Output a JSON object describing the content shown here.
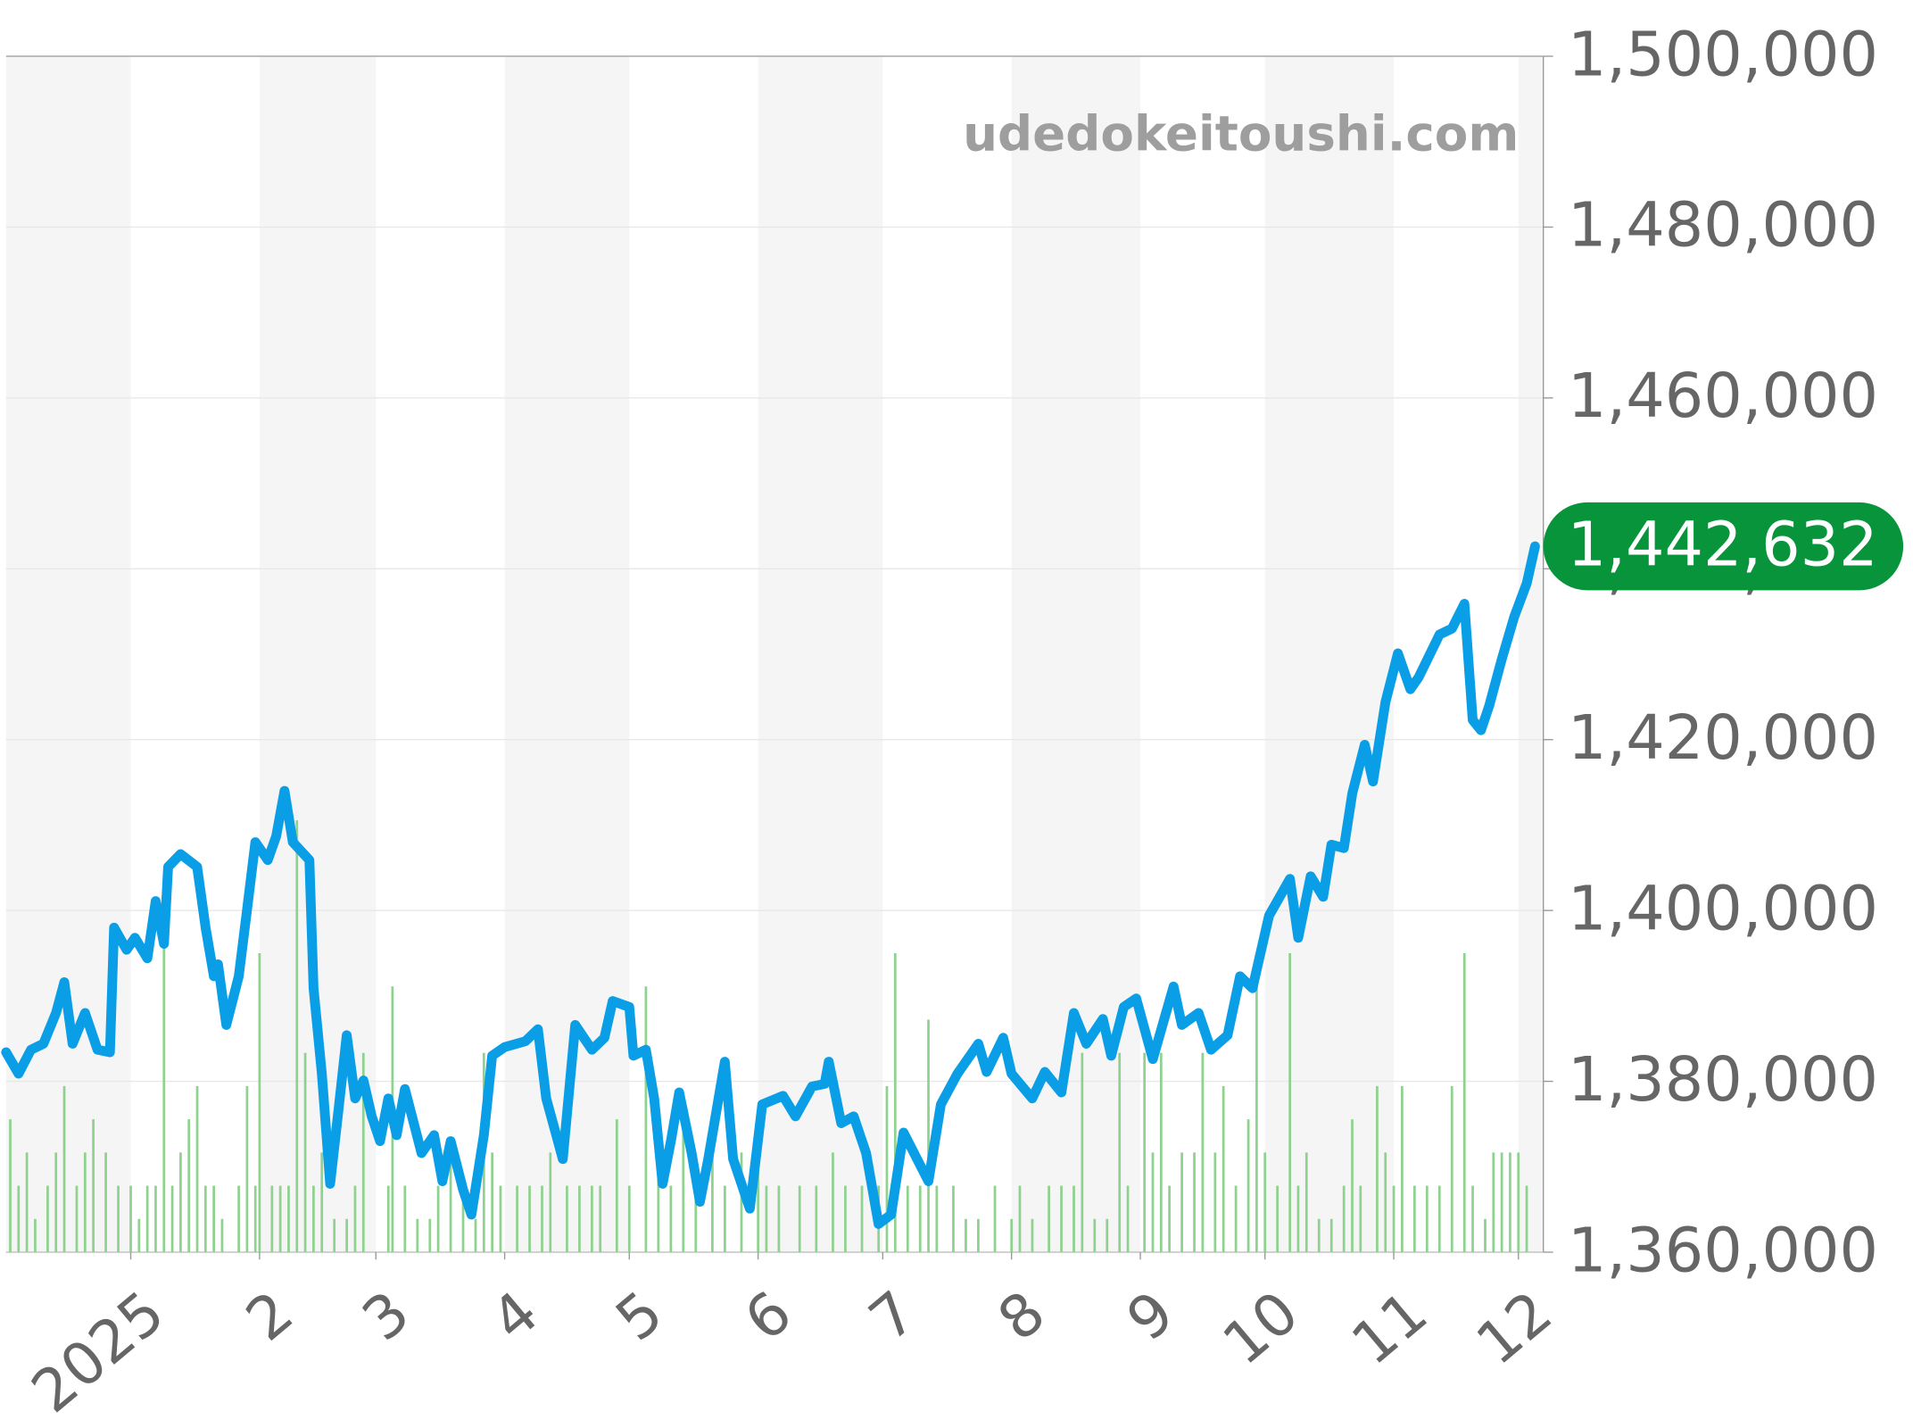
{
  "chart_data": {
    "type": "line",
    "watermark": "udedokeitoushi.com",
    "xlim": [
      -30,
      340
    ],
    "xticks": [
      {
        "value": 0,
        "label": "2025"
      },
      {
        "value": 31,
        "label": "2"
      },
      {
        "value": 59,
        "label": "3"
      },
      {
        "value": 90,
        "label": "4"
      },
      {
        "value": 120,
        "label": "5"
      },
      {
        "value": 151,
        "label": "6"
      },
      {
        "value": 181,
        "label": "7"
      },
      {
        "value": 212,
        "label": "8"
      },
      {
        "value": 243,
        "label": "9"
      },
      {
        "value": 273,
        "label": "10"
      },
      {
        "value": 304,
        "label": "11"
      },
      {
        "value": 334,
        "label": "12"
      }
    ],
    "ylim": [
      1360000,
      1500000
    ],
    "yticks": [
      {
        "value": 1360000,
        "label": "1,360,000"
      },
      {
        "value": 1380000,
        "label": "1,380,000"
      },
      {
        "value": 1400000,
        "label": "1,400,000"
      },
      {
        "value": 1420000,
        "label": "1,420,000"
      },
      {
        "value": 1440000,
        "label": "1,440,000"
      },
      {
        "value": 1460000,
        "label": "1,460,000"
      },
      {
        "value": 1480000,
        "label": "1,480,000"
      },
      {
        "value": 1500000,
        "label": "1,500,000"
      }
    ],
    "grid": true,
    "series": [
      {
        "color": "#0a9ee6",
        "x": [
          -30,
          -27,
          -24,
          -21,
          -18,
          -16,
          -14,
          -11,
          -8,
          -5,
          -4,
          -1,
          1,
          4,
          6,
          8,
          9,
          12,
          16,
          18,
          20,
          21,
          23,
          26,
          28,
          30,
          33,
          35,
          37,
          39,
          43,
          44,
          46,
          48,
          50,
          52,
          54,
          56,
          58,
          60,
          62,
          64,
          66,
          70,
          73,
          75,
          77,
          80,
          82,
          85,
          87,
          90,
          95,
          98,
          100,
          104,
          107,
          111,
          114,
          116,
          120,
          121,
          124,
          126,
          128,
          130,
          132,
          135,
          137,
          139,
          143,
          145,
          149,
          152,
          157,
          160,
          164,
          167,
          168,
          171,
          174,
          177,
          180,
          183,
          186,
          192,
          195,
          199,
          204,
          206,
          210,
          212,
          217,
          220,
          224,
          227,
          230,
          234,
          236,
          239,
          242,
          246,
          251,
          253,
          257,
          260,
          264,
          267,
          270,
          274,
          279,
          281,
          284,
          287,
          289,
          292,
          294,
          297,
          299,
          302,
          305,
          308,
          310,
          315,
          318,
          321,
          323,
          325,
          327,
          330,
          333,
          336,
          338
        ],
        "values": [
          1383400,
          1380900,
          1383700,
          1384400,
          1388000,
          1391600,
          1384400,
          1388000,
          1383700,
          1383400,
          1398000,
          1395400,
          1396800,
          1394400,
          1401100,
          1396100,
          1405100,
          1406600,
          1405100,
          1398000,
          1392300,
          1393700,
          1386600,
          1392300,
          1400100,
          1408000,
          1405900,
          1408700,
          1414000,
          1408000,
          1405900,
          1390900,
          1380900,
          1368000,
          1376600,
          1385400,
          1378000,
          1380100,
          1375900,
          1373000,
          1378000,
          1373700,
          1379100,
          1371600,
          1373700,
          1368300,
          1373000,
          1367300,
          1364400,
          1373700,
          1383000,
          1384000,
          1384700,
          1386100,
          1378000,
          1370900,
          1386600,
          1383700,
          1385100,
          1389400,
          1388700,
          1383000,
          1383700,
          1378000,
          1368000,
          1373000,
          1378700,
          1371600,
          1365900,
          1370900,
          1382300,
          1370900,
          1365100,
          1377300,
          1378300,
          1375900,
          1379400,
          1379700,
          1382300,
          1375100,
          1375900,
          1371600,
          1363300,
          1364400,
          1374000,
          1368300,
          1377300,
          1380900,
          1384400,
          1381100,
          1385100,
          1380900,
          1378000,
          1381100,
          1378700,
          1388000,
          1384400,
          1387300,
          1383000,
          1388700,
          1389700,
          1382600,
          1391100,
          1386600,
          1388000,
          1383700,
          1385400,
          1392300,
          1390900,
          1399400,
          1403700,
          1396800,
          1404000,
          1401600,
          1407700,
          1407300,
          1413700,
          1419400,
          1415100,
          1424400,
          1430100,
          1425900,
          1427300,
          1432300,
          1433000,
          1435900,
          1422300,
          1421100,
          1424000,
          1429400,
          1434400,
          1438300,
          1442632
        ]
      }
    ],
    "annotations": [
      {
        "value": 1442632,
        "label": "1,442,632",
        "color": "#08943a"
      }
    ],
    "volume": {
      "color": "#8fd18f",
      "y2lim": [
        0,
        36
      ],
      "x": [
        -29,
        -27,
        -25,
        -23,
        -20,
        -18,
        -16,
        -13,
        -11,
        -9,
        -6,
        -3,
        0,
        2,
        4,
        6,
        8,
        10,
        12,
        14,
        16,
        18,
        20,
        22,
        26,
        28,
        30,
        31,
        34,
        36,
        38,
        40,
        42,
        44,
        46,
        49,
        52,
        54,
        56,
        62,
        63,
        66,
        69,
        72,
        74,
        77,
        80,
        83,
        85,
        87,
        89,
        93,
        96,
        99,
        101,
        105,
        108,
        111,
        113,
        117,
        120,
        124,
        127,
        130,
        133,
        136,
        140,
        143,
        147,
        151,
        153,
        156,
        161,
        165,
        169,
        172,
        176,
        180,
        182,
        184,
        187,
        190,
        192,
        194,
        198,
        201,
        204,
        208,
        212,
        214,
        217,
        221,
        224,
        227,
        229,
        232,
        235,
        238,
        240,
        244,
        246,
        248,
        250,
        253,
        256,
        258,
        261,
        263,
        266,
        269,
        271,
        273,
        276,
        279,
        281,
        283,
        286,
        289,
        292,
        294,
        296,
        300,
        302,
        304,
        306,
        309,
        312,
        315,
        318,
        321,
        323,
        326,
        328,
        330,
        332,
        334,
        336
      ],
      "values": [
        4,
        2,
        3,
        1,
        2,
        3,
        5,
        2,
        3,
        4,
        3,
        2,
        2,
        1,
        2,
        2,
        10,
        2,
        3,
        4,
        5,
        2,
        2,
        1,
        2,
        5,
        2,
        9,
        2,
        2,
        2,
        13,
        6,
        2,
        3,
        1,
        1,
        2,
        6,
        2,
        8,
        2,
        1,
        1,
        2,
        3,
        2,
        1,
        6,
        3,
        2,
        2,
        2,
        2,
        3,
        2,
        2,
        2,
        2,
        4,
        2,
        8,
        3,
        2,
        4,
        2,
        3,
        2,
        3,
        4,
        2,
        2,
        2,
        2,
        3,
        2,
        2,
        2,
        5,
        9,
        2,
        2,
        7,
        2,
        2,
        1,
        1,
        2,
        1,
        2,
        1,
        2,
        2,
        2,
        6,
        1,
        1,
        6,
        2,
        6,
        3,
        6,
        2,
        3,
        3,
        6,
        3,
        5,
        2,
        4,
        8,
        3,
        2,
        9,
        2,
        3,
        1,
        1,
        2,
        4,
        2,
        5,
        3,
        2,
        5,
        2,
        2,
        2,
        5,
        9,
        2,
        1,
        3,
        3,
        3,
        3,
        2
      ]
    }
  }
}
